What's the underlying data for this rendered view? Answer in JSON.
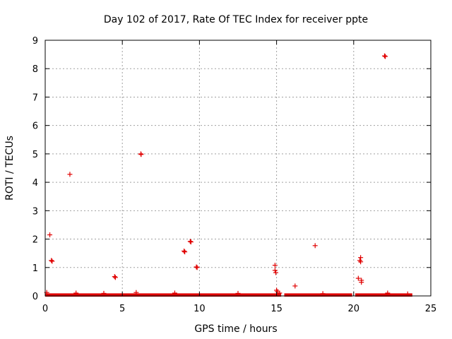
{
  "chart_data": {
    "type": "scatter",
    "title": "Day 102 of 2017, Rate Of TEC Index for receiver ppte",
    "xlabel": "GPS time / hours",
    "ylabel": "ROTI / TECUs",
    "xlim": [
      0,
      25
    ],
    "ylim": [
      0,
      9
    ],
    "xticks": [
      "0",
      "5",
      "10",
      "15",
      "20",
      "25"
    ],
    "yticks": [
      "0",
      "1",
      "2",
      "3",
      "4",
      "5",
      "6",
      "7",
      "8",
      "9"
    ],
    "grid": true,
    "marker": "+",
    "color": "#e00000",
    "baseline_segments": [
      [
        0.0,
        15.3
      ],
      [
        15.5,
        19.9
      ],
      [
        20.1,
        23.8
      ]
    ],
    "series": [
      {
        "name": "ROTI",
        "points": [
          [
            0.1,
            0.12
          ],
          [
            0.3,
            2.15
          ],
          [
            0.4,
            1.25
          ],
          [
            0.45,
            1.22
          ],
          [
            1.6,
            4.28
          ],
          [
            4.5,
            0.68
          ],
          [
            4.55,
            0.65
          ],
          [
            5.9,
            0.12
          ],
          [
            6.2,
            5.0
          ],
          [
            6.22,
            4.98
          ],
          [
            9.0,
            1.58
          ],
          [
            9.05,
            1.55
          ],
          [
            9.4,
            1.92
          ],
          [
            9.45,
            1.9
          ],
          [
            9.8,
            1.02
          ],
          [
            9.85,
            1.0
          ],
          [
            14.9,
            1.08
          ],
          [
            14.9,
            0.9
          ],
          [
            14.95,
            0.82
          ],
          [
            15.0,
            0.2
          ],
          [
            15.05,
            0.15
          ],
          [
            15.2,
            0.1
          ],
          [
            16.2,
            0.35
          ],
          [
            17.5,
            1.77
          ],
          [
            20.3,
            0.62
          ],
          [
            20.4,
            1.25
          ],
          [
            20.45,
            1.35
          ],
          [
            20.45,
            1.2
          ],
          [
            20.5,
            0.55
          ],
          [
            20.5,
            0.48
          ],
          [
            22.0,
            8.45
          ],
          [
            22.05,
            8.43
          ],
          [
            22.2,
            0.1
          ],
          [
            2.0,
            0.1
          ],
          [
            3.8,
            0.09
          ],
          [
            8.4,
            0.1
          ],
          [
            12.5,
            0.09
          ],
          [
            18.0,
            0.08
          ],
          [
            23.5,
            0.07
          ]
        ]
      }
    ]
  }
}
